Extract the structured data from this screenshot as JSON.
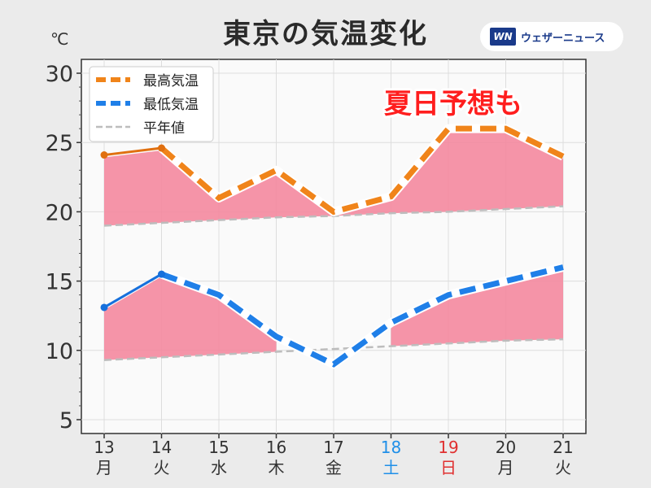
{
  "page": {
    "title": "東京の気温変化",
    "unit": "℃",
    "logo_text": "ウェザーニュース",
    "logo_mark": "WN"
  },
  "colors": {
    "max": "#f0841a",
    "max_observed": "#e07010",
    "min": "#1f7fe8",
    "min_observed": "#1670dc",
    "normal": "#bdbdbd",
    "fill": "#f4889f",
    "saturday": "#1f8fe8",
    "sunday": "#e03030",
    "weekday": "#333333",
    "annotation_fill": "#ff1e1e"
  },
  "chart_data": {
    "type": "line",
    "x": [
      "13",
      "14",
      "15",
      "16",
      "17",
      "18",
      "19",
      "20",
      "21"
    ],
    "weekdays": [
      "月",
      "火",
      "水",
      "木",
      "金",
      "土",
      "日",
      "月",
      "火"
    ],
    "ylim": [
      4,
      31
    ],
    "yticks": [
      5,
      10,
      15,
      20,
      25,
      30
    ],
    "grid": true,
    "legend": "top-left",
    "annotation": "夏日予想も",
    "series": [
      {
        "name": "最高気温",
        "key": "max",
        "values": [
          24.1,
          24.6,
          21.0,
          23.0,
          20.0,
          21.1,
          26.0,
          26.0,
          24.0
        ],
        "observed_until": 1
      },
      {
        "name": "最低気温",
        "key": "min",
        "values": [
          13.1,
          15.5,
          14.0,
          11.0,
          9.0,
          12.0,
          14.0,
          15.0,
          16.0
        ],
        "observed_until": 1
      },
      {
        "name": "平年値",
        "key": "normal_max",
        "values": [
          19.0,
          19.2,
          19.4,
          19.6,
          19.7,
          19.9,
          20.0,
          20.2,
          20.4
        ]
      },
      {
        "key": "normal_min",
        "values": [
          9.3,
          9.5,
          9.7,
          9.9,
          10.1,
          10.3,
          10.5,
          10.7,
          10.8
        ]
      }
    ]
  }
}
